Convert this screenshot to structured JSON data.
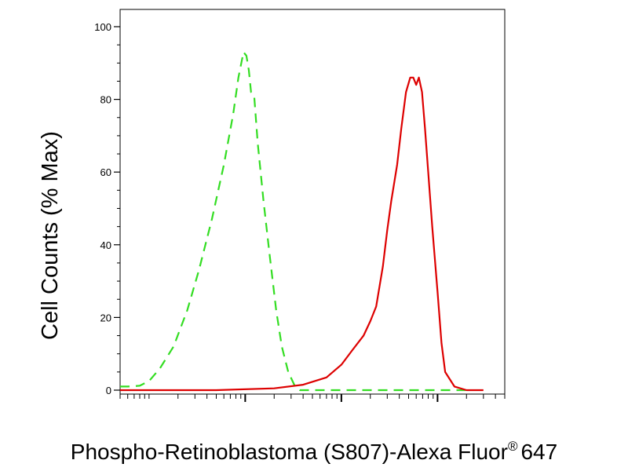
{
  "chart_data": {
    "type": "line",
    "xlabel": "Phospho-Retinoblastoma (S807)-Alexa Fluor",
    "xlabel_superscript": "®",
    "xlabel_suffix": "647",
    "ylabel": "Cell Counts (% Max)",
    "x_scale": "log",
    "xlim": [
      0.5,
      5000
    ],
    "ylim": [
      0,
      100
    ],
    "y_ticks": [
      0,
      20,
      40,
      60,
      80,
      100
    ],
    "y_tick_labels": [
      "0",
      "20",
      "40",
      "60",
      "80",
      "100"
    ],
    "x_major_ticks": [
      10,
      100,
      1000
    ],
    "grid": false,
    "series": [
      {
        "color": "#33dd22",
        "line_style": "dashed",
        "x": [
          0.5,
          0.6,
          0.8,
          1.0,
          1.3,
          1.8,
          2.5,
          3.3,
          4.5,
          6.0,
          7.5,
          8.5,
          9.6,
          10.3,
          10.9,
          11.5,
          12.4,
          13.5,
          15.5,
          18.0,
          21.0,
          24.0,
          28.0,
          33.0,
          37.0,
          42.0,
          60.0,
          200.0,
          1000.0,
          2000.0
        ],
        "y": [
          1,
          1,
          1.2,
          2.5,
          6,
          12,
          22,
          33,
          47,
          62,
          76,
          86,
          93,
          92,
          88,
          82,
          81,
          68,
          52,
          37,
          22,
          12,
          5,
          1,
          0,
          0,
          0,
          0,
          0,
          0
        ]
      },
      {
        "color": "#dd0000",
        "line_style": "solid",
        "x": [
          0.5,
          5,
          20,
          40,
          70,
          100,
          130,
          170,
          200,
          230,
          270,
          300,
          330,
          380,
          420,
          470,
          520,
          560,
          600,
          640,
          690,
          740,
          800,
          880,
          1000,
          1100,
          1200,
          1500,
          2000,
          3000
        ],
        "y": [
          0,
          0,
          0.5,
          1.5,
          3.5,
          7,
          11,
          15,
          19,
          23,
          34,
          44,
          52,
          62,
          72,
          82,
          86,
          86,
          84,
          86,
          82,
          72,
          60,
          45,
          27,
          13,
          5,
          1,
          0,
          0
        ]
      }
    ]
  }
}
